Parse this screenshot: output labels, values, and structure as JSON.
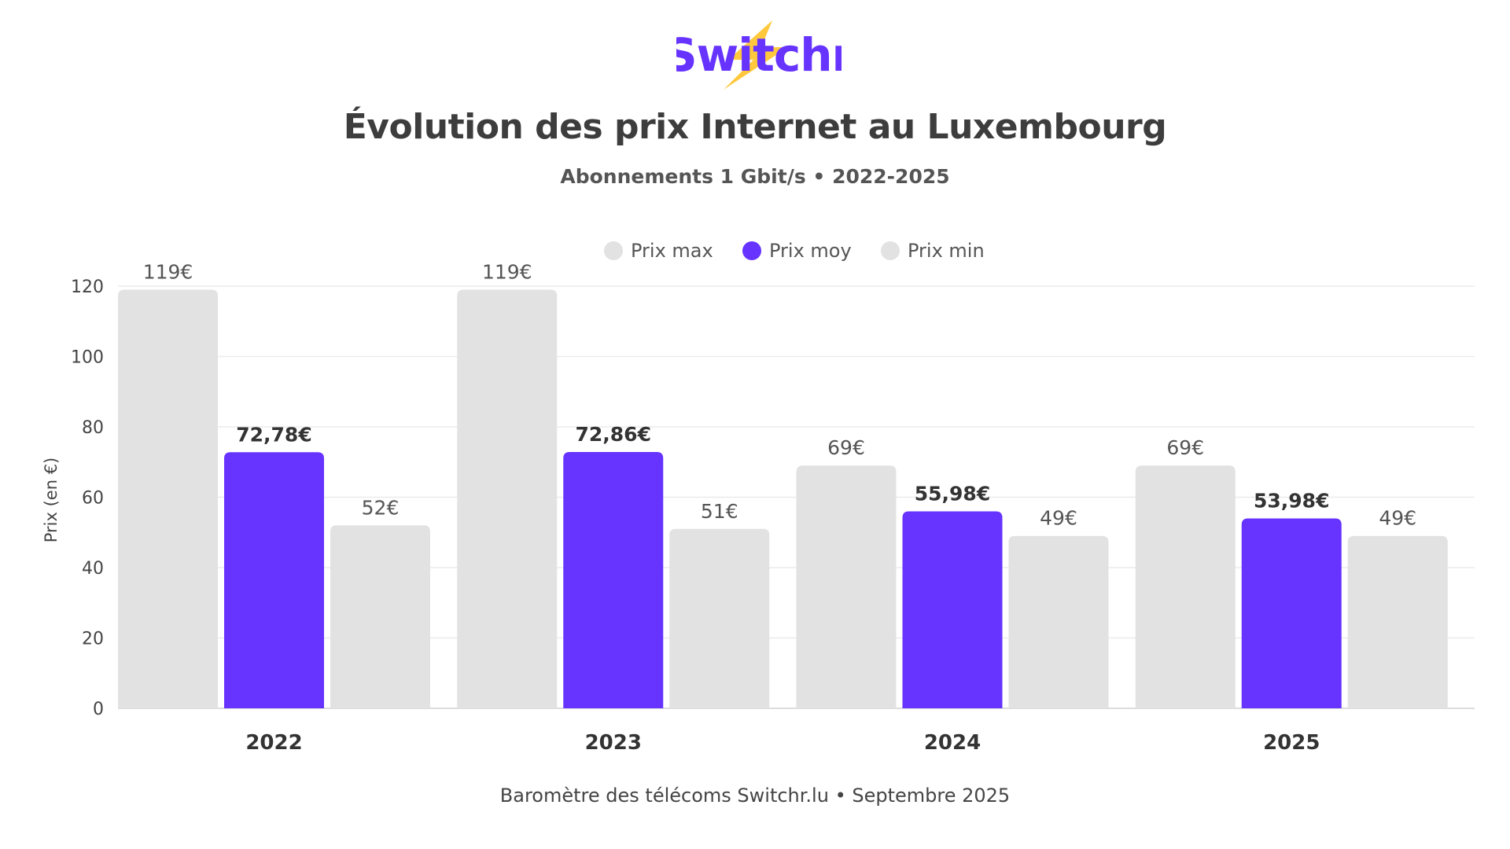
{
  "brand": {
    "logo_text": "Switchr",
    "text_color": "#6633ff",
    "bolt_color": "#ffc83d"
  },
  "header": {
    "title": "Évolution des prix Internet au Luxembourg",
    "subtitle": "Abonnements 1 Gbit/s • 2022-2025"
  },
  "footer": {
    "source": "Baromètre des télécoms Switchr.lu • Septembre 2025"
  },
  "colors": {
    "max": "#e2e2e2",
    "avg": "#6633ff",
    "min": "#e2e2e2"
  },
  "chart_data": {
    "type": "bar",
    "title": "Évolution des prix Internet au Luxembourg",
    "subtitle": "Abonnements 1 Gbit/s • 2022-2025",
    "xlabel": "",
    "ylabel": "Prix (en €)",
    "ylim": [
      0,
      120
    ],
    "yticks": [
      0,
      20,
      40,
      60,
      80,
      100,
      120
    ],
    "grid": true,
    "legend_position": "top-center",
    "categories": [
      "2022",
      "2023",
      "2024",
      "2025"
    ],
    "series": [
      {
        "name": "Prix max",
        "values": [
          119,
          119,
          69,
          69
        ],
        "labels": [
          "119€",
          "119€",
          "69€",
          "69€"
        ]
      },
      {
        "name": "Prix moy",
        "values": [
          72.78,
          72.86,
          55.98,
          53.98
        ],
        "labels": [
          "72,78€",
          "72,86€",
          "55,98€",
          "53,98€"
        ]
      },
      {
        "name": "Prix min",
        "values": [
          52,
          51,
          49,
          49
        ],
        "labels": [
          "52€",
          "51€",
          "49€",
          "49€"
        ]
      }
    ]
  }
}
